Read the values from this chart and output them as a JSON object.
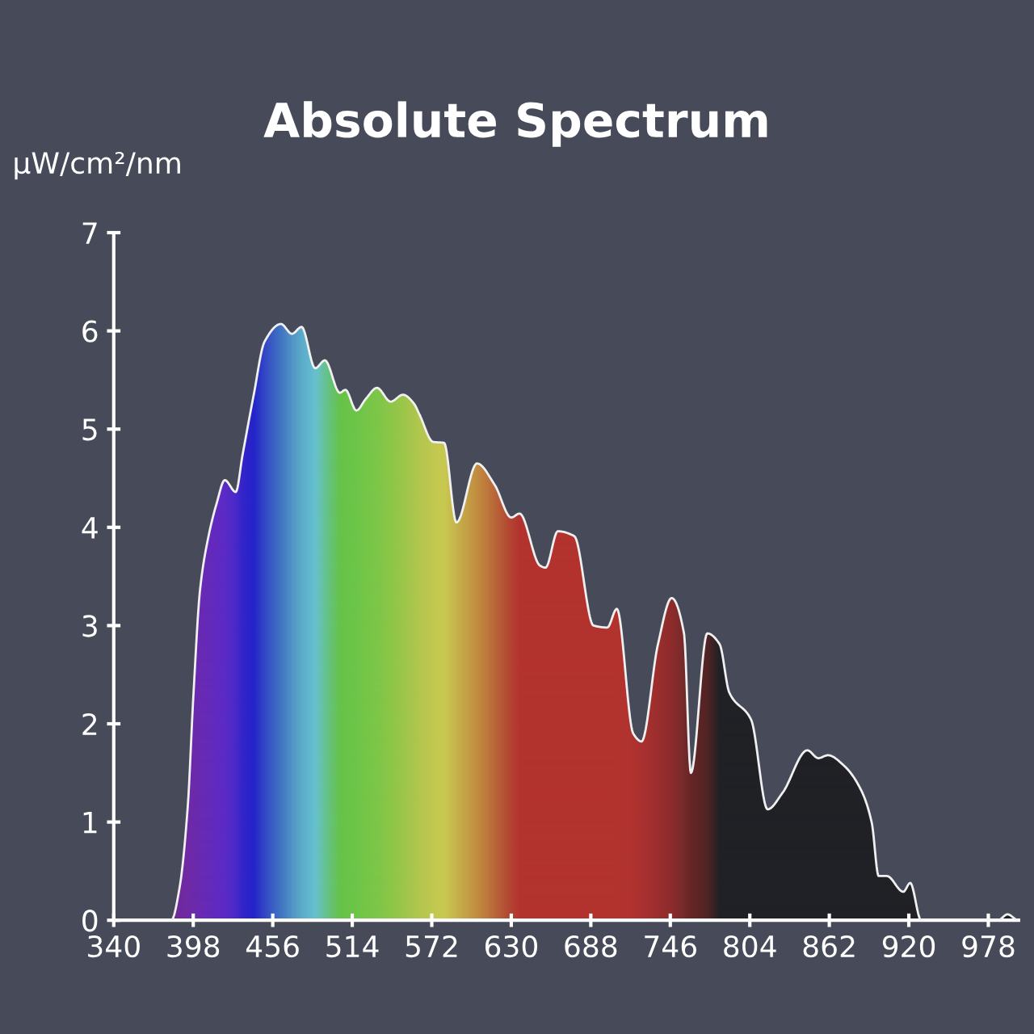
{
  "chart_data": {
    "type": "area",
    "title": "Absolute Spectrum",
    "ylabel": "μW/cm²/nm",
    "xlim": [
      340,
      1000
    ],
    "xticks": [
      340,
      398,
      456,
      514,
      572,
      630,
      688,
      746,
      804,
      862,
      920,
      978
    ],
    "ylim": [
      0,
      7
    ],
    "yticks": [
      0,
      1,
      2,
      3,
      4,
      5,
      6,
      7
    ],
    "grid": false,
    "legend": false,
    "series": [
      {
        "color": "#f0f0f0",
        "x": [
          340,
          382,
          388,
          394,
          398,
          403,
          409,
          415,
          421,
          429,
          434,
          442,
          450,
          462,
          470,
          477,
          487,
          494,
          505,
          509,
          517,
          524,
          532,
          542,
          551,
          559,
          563,
          573,
          581,
          590,
          605,
          618,
          630,
          636,
          651,
          655,
          664,
          676,
          690,
          700,
          707,
          719,
          725,
          737,
          747,
          756,
          761,
          773,
          782,
          789,
          805,
          817,
          828,
          846,
          854,
          861,
          873,
          885,
          893,
          898,
          904,
          916,
          921,
          929,
          985,
          992,
          1000
        ],
        "values": [
          0,
          0,
          0.33,
          1.16,
          2.26,
          3.37,
          3.9,
          4.24,
          4.48,
          4.36,
          4.74,
          5.34,
          5.89,
          6.07,
          5.97,
          6.04,
          5.62,
          5.7,
          5.37,
          5.4,
          5.19,
          5.31,
          5.42,
          5.28,
          5.35,
          5.26,
          5.15,
          4.87,
          4.86,
          4.05,
          4.65,
          4.43,
          4.1,
          4.14,
          3.61,
          3.59,
          3.96,
          3.91,
          3.0,
          2.98,
          3.17,
          1.9,
          1.82,
          2.81,
          3.28,
          2.92,
          1.5,
          2.92,
          2.81,
          2.32,
          2.04,
          1.13,
          1.3,
          1.73,
          1.65,
          1.68,
          1.57,
          1.33,
          0.99,
          0.45,
          0.45,
          0.29,
          0.38,
          0,
          0,
          0.06,
          0
        ],
        "colors": [
          "#6a1f8f",
          "#6a1f8f",
          "#6a1f9a",
          "#6a20a5",
          "#6520a8",
          "#6220b0",
          "#5e20b8",
          "#5a20c0",
          "#5520c5",
          "#4020c8",
          "#2a1ac8",
          "#1a1ac8",
          "#2a40c4",
          "#3a70c0",
          "#4a90c4",
          "#55a8c8",
          "#60c0d0",
          "#5ec090",
          "#60c040",
          "#62c240",
          "#66c440",
          "#70c440",
          "#78c440",
          "#88c440",
          "#98c442",
          "#a8c444",
          "#b0c446",
          "#c0c848",
          "#c8c848",
          "#c4b044",
          "#c08838",
          "#b86030",
          "#b03a28",
          "#b02a24",
          "#b02a24",
          "#b02a24",
          "#b02a24",
          "#b02a24",
          "#b02a24",
          "#b02a24",
          "#b02a24",
          "#ae2a26",
          "#a82826",
          "#982424",
          "#882222",
          "#702020",
          "#601c1c",
          "#4a1a1a",
          "#16171c",
          "#16171c",
          "#16171c",
          "#16171c",
          "#16171c",
          "#16171c",
          "#16171c",
          "#16171c",
          "#16171c",
          "#16171c",
          "#16171c",
          "#16171c",
          "#16171c",
          "#16171c",
          "#16171c",
          "#16171c",
          "#16171c",
          "#16171c",
          "#16171c"
        ]
      }
    ]
  }
}
